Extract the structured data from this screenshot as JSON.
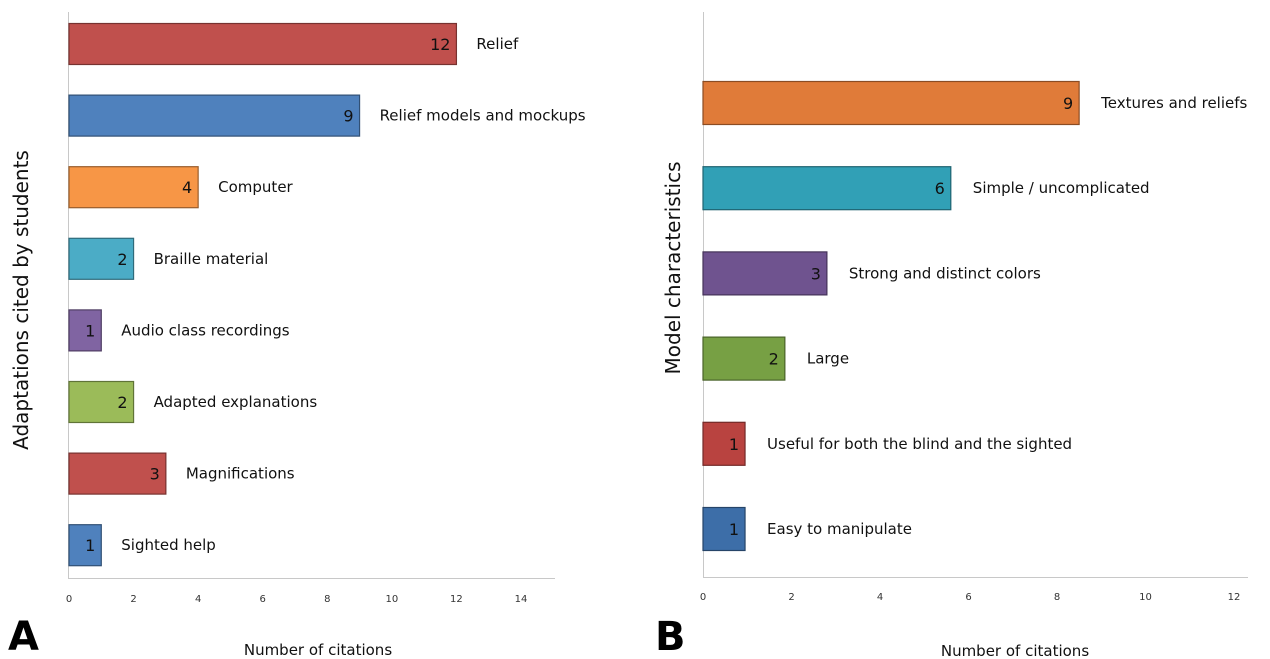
{
  "chart_data": [
    {
      "type": "bar",
      "orientation": "horizontal",
      "panel": "A",
      "ylabel": "Adaptations cited by students",
      "xlabel": "Number of citations",
      "xlim": [
        0,
        14
      ],
      "xticks": [
        "0",
        "2",
        "4",
        "6",
        "8",
        "10",
        "12",
        "14"
      ],
      "grid": false,
      "bars": [
        {
          "label": "Relief",
          "value": 12,
          "value_label": "12",
          "color": "#c0504d"
        },
        {
          "label": "Relief models and mockups",
          "value": 9,
          "value_label": "9",
          "color": "#4f81bd"
        },
        {
          "label": "Computer",
          "value": 4,
          "value_label": "4",
          "color": "#f79646"
        },
        {
          "label": "Braille material",
          "value": 2,
          "value_label": "2",
          "color": "#4bacc6"
        },
        {
          "label": "Audio class recordings",
          "value": 1,
          "value_label": "1",
          "color": "#8064a2"
        },
        {
          "label": "Adapted explanations",
          "value": 2,
          "value_label": "2",
          "color": "#9bbb59"
        },
        {
          "label": "Magnifications",
          "value": 3,
          "value_label": "3",
          "color": "#c0504d"
        },
        {
          "label": "Sighted help",
          "value": 1,
          "value_label": "1",
          "color": "#4f81bd"
        }
      ]
    },
    {
      "type": "bar",
      "orientation": "horizontal",
      "panel": "B",
      "ylabel": "Model characteristics",
      "xlabel": "Number of citations",
      "xlim": [
        0,
        12
      ],
      "xticks": [
        "0",
        "2",
        "4",
        "6",
        "8",
        "10",
        "12"
      ],
      "grid": false,
      "bars": [
        {
          "label": "Textures and reliefs",
          "value": 8.5,
          "value_label": "9",
          "color": "#e07b39"
        },
        {
          "label": "Simple / uncomplicated",
          "value": 5.6,
          "value_label": "6",
          "color": "#31a0b6"
        },
        {
          "label": "Strong and distinct colors",
          "value": 2.8,
          "value_label": "3",
          "color": "#6f538f"
        },
        {
          "label": "Large",
          "value": 1.85,
          "value_label": "2",
          "color": "#77a044"
        },
        {
          "label": "Useful for both the blind and the sighted",
          "value": 0.95,
          "value_label": "1",
          "color": "#b94340"
        },
        {
          "label": "Easy to manipulate",
          "value": 0.95,
          "value_label": "1",
          "color": "#3d6ea8"
        }
      ]
    }
  ]
}
